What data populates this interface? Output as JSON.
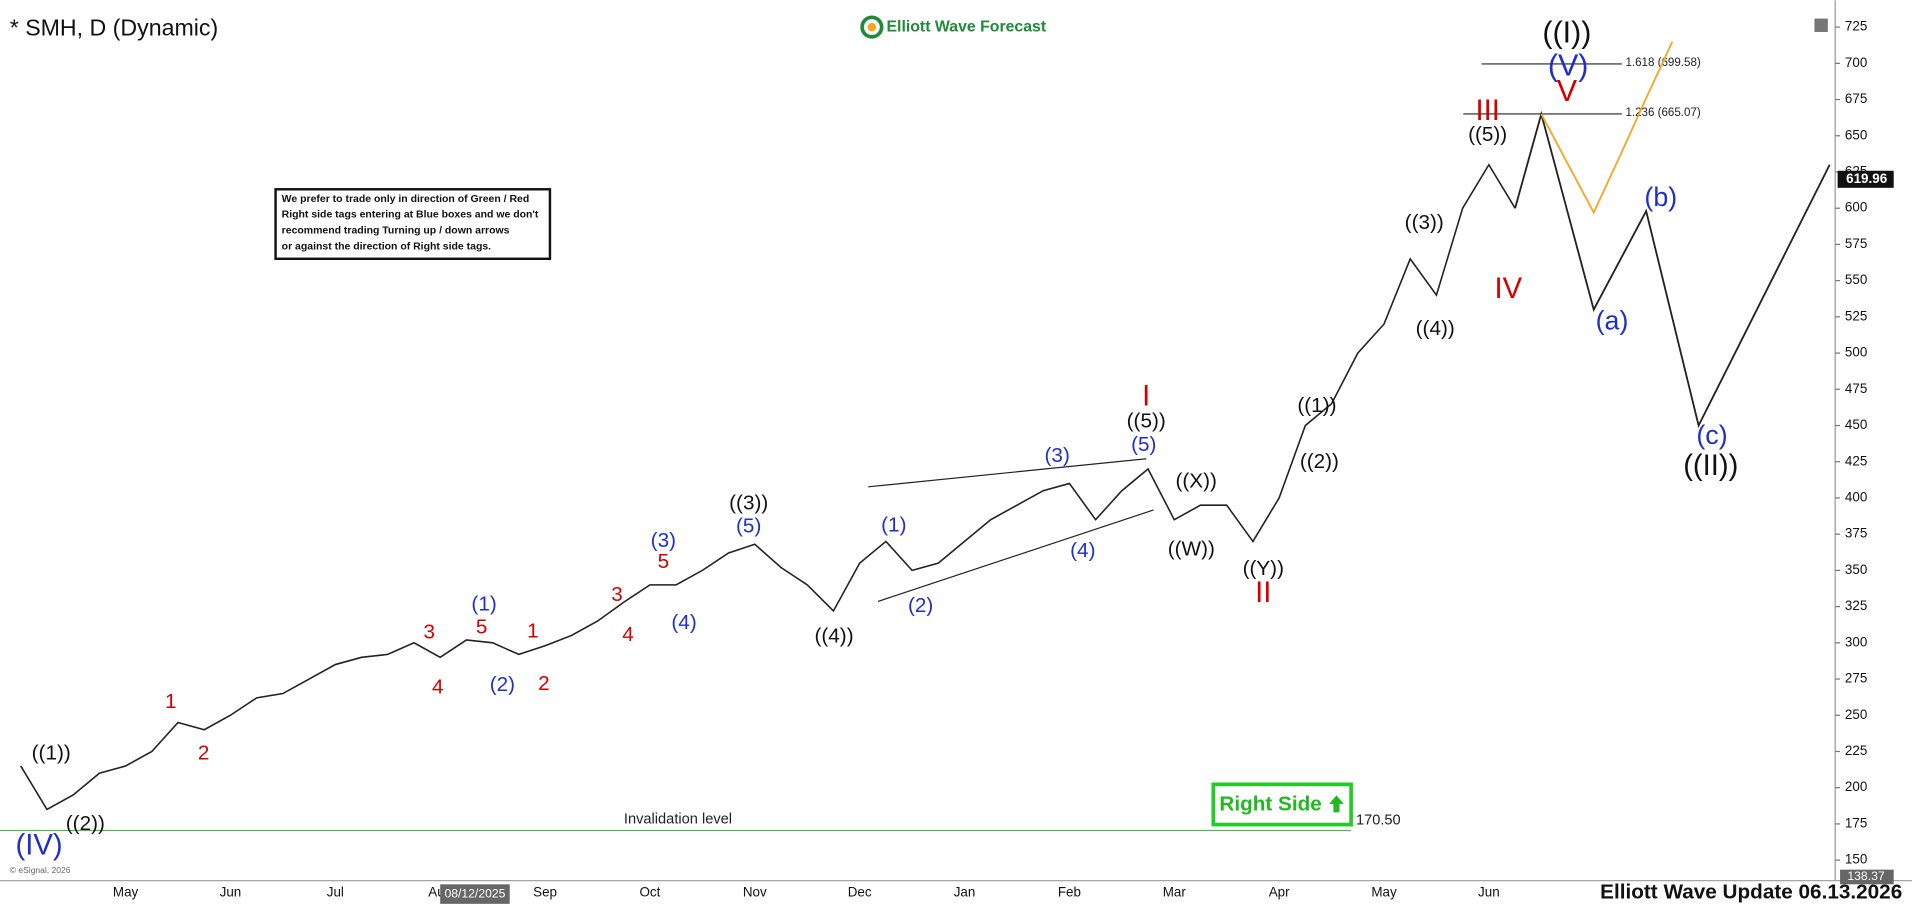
{
  "chart_data": {
    "type": "line",
    "title": "* SMH, D (Dynamic)",
    "brand": "Elliott Wave Forecast",
    "footer": "Elliott Wave Update 06.13.2026",
    "copyright": "© eSignal, 2026",
    "note": [
      "We prefer to trade only in direction of Green / Red",
      "Right side tags entering at Blue boxes and we don't",
      "recommend trading Turning up / down arrows",
      "or against the direction of Right side tags."
    ],
    "right_side_tag": "Right Side",
    "categories": [
      null,
      null,
      null,
      null,
      "May",
      null,
      null,
      null,
      "Jun",
      null,
      null,
      null,
      "Jul",
      null,
      null,
      null,
      "Aug",
      null,
      null,
      null,
      "Sep",
      null,
      null,
      null,
      "Oct",
      null,
      null,
      null,
      "Nov",
      null,
      null,
      null,
      "Dec",
      null,
      null,
      null,
      "Jan",
      null,
      null,
      null,
      "Feb",
      null,
      null,
      null,
      "Mar",
      null,
      null,
      null,
      "Apr",
      null,
      null,
      null,
      "May",
      null,
      null,
      null,
      "Jun",
      null,
      null,
      null,
      null,
      null,
      null,
      null,
      null,
      null,
      null,
      null,
      null,
      null
    ],
    "series": [
      {
        "color": "#222222",
        "values": [
          215,
          185,
          195,
          210,
          215,
          225,
          245,
          240,
          250,
          262,
          265,
          275,
          285,
          290,
          292,
          300,
          290,
          302,
          300,
          292,
          298,
          305,
          315,
          328,
          340,
          340,
          350,
          362,
          368,
          352,
          340,
          322,
          355,
          370,
          350,
          355,
          370,
          385,
          395,
          405,
          410,
          385,
          405,
          420,
          385,
          395,
          395,
          370,
          400,
          450,
          465,
          500,
          520,
          565,
          540,
          600,
          630,
          600,
          null,
          null,
          null,
          null,
          null,
          null,
          null,
          null,
          null,
          null,
          null,
          null
        ]
      },
      {
        "color": "#222222",
        "values": [
          null,
          null,
          null,
          null,
          null,
          null,
          null,
          null,
          null,
          null,
          null,
          null,
          null,
          null,
          null,
          null,
          null,
          null,
          null,
          null,
          null,
          null,
          null,
          null,
          null,
          null,
          null,
          null,
          null,
          null,
          null,
          null,
          null,
          null,
          null,
          null,
          null,
          null,
          null,
          null,
          null,
          null,
          null,
          null,
          null,
          null,
          null,
          null,
          null,
          null,
          null,
          null,
          null,
          null,
          null,
          null,
          null,
          600,
          665,
          597.5,
          530,
          564,
          598,
          524,
          450,
          486,
          522,
          558,
          594,
          630
        ]
      },
      {
        "color": "#f5a623",
        "values": [
          null,
          null,
          null,
          null,
          null,
          null,
          null,
          null,
          null,
          null,
          null,
          null,
          null,
          null,
          null,
          null,
          null,
          null,
          null,
          null,
          null,
          null,
          null,
          null,
          null,
          null,
          null,
          null,
          null,
          null,
          null,
          null,
          null,
          null,
          null,
          null,
          null,
          null,
          null,
          null,
          null,
          null,
          null,
          null,
          null,
          null,
          null,
          null,
          null,
          null,
          null,
          null,
          null,
          null,
          null,
          null,
          null,
          null,
          665,
          631,
          597,
          636,
          676,
          715,
          null,
          null,
          null,
          null,
          null,
          null
        ]
      }
    ],
    "ylim": [
      137.5,
      733
    ],
    "yticks": [
      150,
      175,
      200,
      225,
      250,
      275,
      300,
      325,
      350,
      375,
      400,
      425,
      450,
      475,
      500,
      525,
      550,
      575,
      600,
      625,
      650,
      675,
      700,
      725
    ],
    "last_price": 619.96,
    "cursor": {
      "x_label": "08/12/2025",
      "y_value": 138.37
    },
    "fib_levels": {
      "values": [
        699.58,
        665.07
      ],
      "value_labels": [
        "1.618 (699.58)",
        "1.236 (665.07)"
      ]
    },
    "invalidation": {
      "label": "Invalidation level",
      "value": 170.5,
      "value_label": "170.50",
      "color": "#3ec43e"
    },
    "wave_labels": [
      {
        "text": "(IV)",
        "color": "#1f2fc8"
      },
      {
        "text": "((1))",
        "color": "#111111"
      },
      {
        "text": "((2))",
        "color": "#111111"
      },
      {
        "text": "1",
        "color": "#d40000"
      },
      {
        "text": "2",
        "color": "#d40000"
      },
      {
        "text": "3",
        "color": "#d40000"
      },
      {
        "text": "4",
        "color": "#d40000"
      },
      {
        "text": "(1)",
        "color": "#1f2fc8"
      },
      {
        "text": "5",
        "color": "#d40000"
      },
      {
        "text": "(2)",
        "color": "#1f2fc8"
      },
      {
        "text": "1",
        "color": "#d40000"
      },
      {
        "text": "2",
        "color": "#d40000"
      },
      {
        "text": "3",
        "color": "#d40000"
      },
      {
        "text": "4",
        "color": "#d40000"
      },
      {
        "text": "(3)",
        "color": "#1f2fc8"
      },
      {
        "text": "5",
        "color": "#d40000"
      },
      {
        "text": "(4)",
        "color": "#1f2fc8"
      },
      {
        "text": "((3))",
        "color": "#111111"
      },
      {
        "text": "(5)",
        "color": "#1f2fc8"
      },
      {
        "text": "((4))",
        "color": "#111111"
      },
      {
        "text": "(1)",
        "color": "#1f2fc8"
      },
      {
        "text": "(2)",
        "color": "#1f2fc8"
      },
      {
        "text": "(3)",
        "color": "#1f2fc8"
      },
      {
        "text": "(4)",
        "color": "#1f2fc8"
      },
      {
        "text": "I",
        "color": "#d40000"
      },
      {
        "text": "((5))",
        "color": "#111111"
      },
      {
        "text": "(5)",
        "color": "#1f2fc8"
      },
      {
        "text": "((X))",
        "color": "#111111"
      },
      {
        "text": "((W))",
        "color": "#111111"
      },
      {
        "text": "((Y))",
        "color": "#111111"
      },
      {
        "text": "II",
        "color": "#d40000"
      },
      {
        "text": "((1))",
        "color": "#111111"
      },
      {
        "text": "((2))",
        "color": "#111111"
      },
      {
        "text": "((3))",
        "color": "#111111"
      },
      {
        "text": "((4))",
        "color": "#111111"
      },
      {
        "text": "III",
        "color": "#d40000"
      },
      {
        "text": "((5))",
        "color": "#111111"
      },
      {
        "text": "IV",
        "color": "#d40000"
      },
      {
        "text": "((I))",
        "color": "#111111"
      },
      {
        "text": "(V)",
        "color": "#1f2fc8"
      },
      {
        "text": "V",
        "color": "#d40000"
      },
      {
        "text": "(a)",
        "color": "#1f2fc8"
      },
      {
        "text": "(b)",
        "color": "#1f2fc8"
      },
      {
        "text": "(c)",
        "color": "#1f2fc8"
      },
      {
        "text": "((II))",
        "color": "#111111"
      }
    ]
  }
}
